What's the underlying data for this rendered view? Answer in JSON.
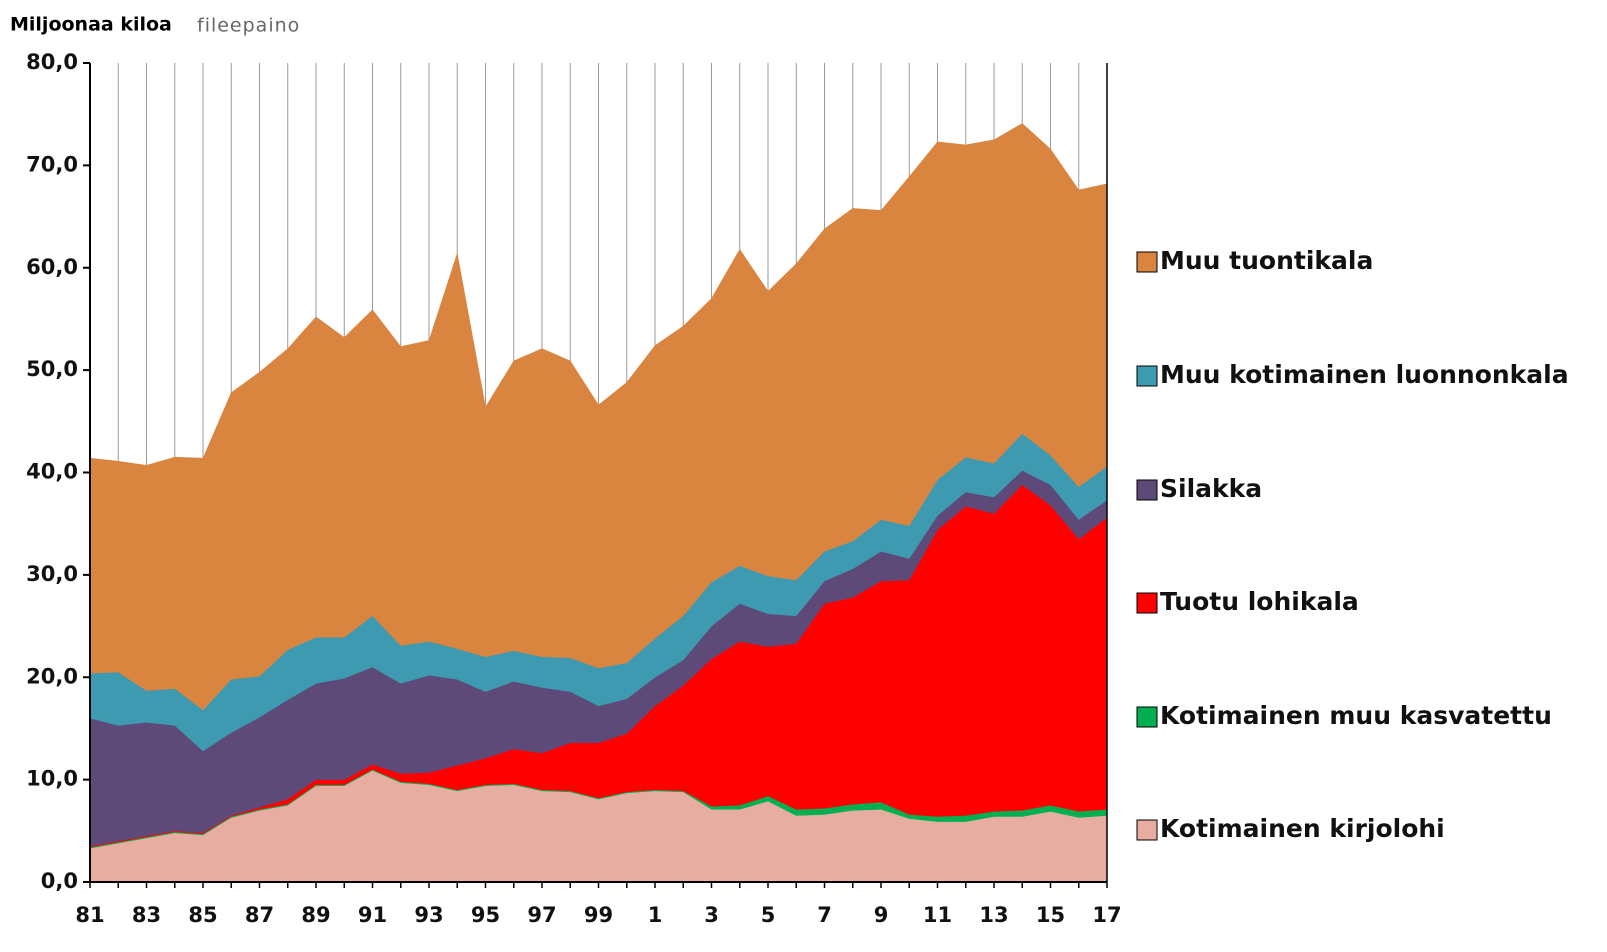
{
  "chart_data": {
    "type": "stacked_area",
    "title": "Miljoonaa kiloa",
    "subtitle": "fileepaino",
    "categories": [
      "81",
      null,
      "83",
      null,
      "85",
      null,
      "87",
      null,
      "89",
      null,
      "91",
      null,
      "93",
      null,
      "95",
      null,
      "97",
      null,
      "99",
      null,
      "1",
      null,
      "3",
      null,
      "5",
      null,
      "7",
      null,
      "9",
      null,
      "11",
      null,
      "13",
      null,
      "15",
      null,
      "17"
    ],
    "series": [
      {
        "name": "Kotimainen kirjolohi",
        "color": "#e8ada1",
        "values": [
          3.3,
          3.8,
          4.3,
          4.8,
          4.6,
          6.3,
          7.0,
          7.5,
          9.4,
          9.4,
          10.9,
          9.7,
          9.5,
          8.9,
          9.4,
          9.5,
          8.9,
          8.8,
          8.1,
          8.7,
          8.9,
          8.8,
          7.1,
          7.1,
          7.9,
          6.5,
          6.6,
          7.0,
          7.1,
          6.2,
          5.9,
          5.9,
          6.4,
          6.4,
          6.9,
          6.3,
          6.5
        ]
      },
      {
        "name": "Kotimainen muu kasvatettu",
        "color": "#00b050",
        "values": [
          0.1,
          0.1,
          0.1,
          0.1,
          0.1,
          0.1,
          0.1,
          0.1,
          0.1,
          0.1,
          0.1,
          0.1,
          0.1,
          0.1,
          0.1,
          0.1,
          0.1,
          0.1,
          0.1,
          0.1,
          0.1,
          0.1,
          0.3,
          0.4,
          0.5,
          0.6,
          0.6,
          0.6,
          0.7,
          0.4,
          0.5,
          0.6,
          0.5,
          0.6,
          0.6,
          0.6,
          0.6
        ]
      },
      {
        "name": "Tuotu lohikala",
        "color": "#ff0000",
        "values": [
          0.1,
          0.1,
          0.1,
          0.1,
          0.1,
          0.1,
          0.2,
          0.5,
          0.5,
          0.5,
          0.5,
          0.8,
          1.1,
          2.4,
          2.6,
          3.4,
          3.6,
          4.7,
          5.4,
          5.7,
          8.2,
          10.3,
          14.4,
          16.0,
          14.6,
          16.2,
          20.0,
          20.2,
          21.6,
          22.9,
          28.0,
          30.2,
          29.1,
          31.8,
          29.3,
          26.6,
          28.5
        ]
      },
      {
        "name": "Silakka",
        "color": "#5e4a79",
        "values": [
          12.5,
          11.3,
          11.1,
          10.3,
          8.0,
          8.1,
          8.8,
          9.7,
          9.4,
          9.9,
          9.5,
          8.8,
          9.5,
          8.4,
          6.5,
          6.6,
          6.4,
          5.0,
          3.6,
          3.4,
          2.8,
          2.5,
          3.2,
          3.7,
          3.2,
          2.7,
          2.2,
          2.8,
          2.9,
          2.1,
          1.4,
          1.4,
          1.6,
          1.4,
          2.0,
          1.9,
          1.7
        ]
      },
      {
        "name": "Muu kotimainen luonnonkala",
        "color": "#3d9ab0",
        "values": [
          4.4,
          5.2,
          3.1,
          3.6,
          4.0,
          5.2,
          4.0,
          4.9,
          4.5,
          4.0,
          5.0,
          3.7,
          3.3,
          3.0,
          3.4,
          3.0,
          3.0,
          3.3,
          3.7,
          3.5,
          3.8,
          4.3,
          4.3,
          3.7,
          3.7,
          3.5,
          2.9,
          2.7,
          3.1,
          3.2,
          3.5,
          3.4,
          3.3,
          3.6,
          2.9,
          3.2,
          3.3
        ]
      },
      {
        "name": "Muu tuontikala",
        "color": "#d9843f",
        "values": [
          21.0,
          20.6,
          22.0,
          22.6,
          24.6,
          28.0,
          29.7,
          29.4,
          31.3,
          29.3,
          29.9,
          29.2,
          29.4,
          38.6,
          24.4,
          28.3,
          30.1,
          29.0,
          25.7,
          27.4,
          28.6,
          28.3,
          27.7,
          30.9,
          27.8,
          30.9,
          31.5,
          32.5,
          30.2,
          34.1,
          33.0,
          30.5,
          31.6,
          30.3,
          29.9,
          29.0,
          27.6
        ]
      }
    ],
    "ylim": [
      0,
      80
    ],
    "yticks": [
      {
        "value": 0,
        "label": "0,0"
      },
      {
        "value": 10,
        "label": "10,0"
      },
      {
        "value": 20,
        "label": "20,0"
      },
      {
        "value": 30,
        "label": "30,0"
      },
      {
        "value": 40,
        "label": "40,0"
      },
      {
        "value": 50,
        "label": "50,0"
      },
      {
        "value": 60,
        "label": "60,0"
      },
      {
        "value": 70,
        "label": "70,0"
      },
      {
        "value": 80,
        "label": "80,0"
      }
    ],
    "grid": true,
    "legend": "right"
  }
}
